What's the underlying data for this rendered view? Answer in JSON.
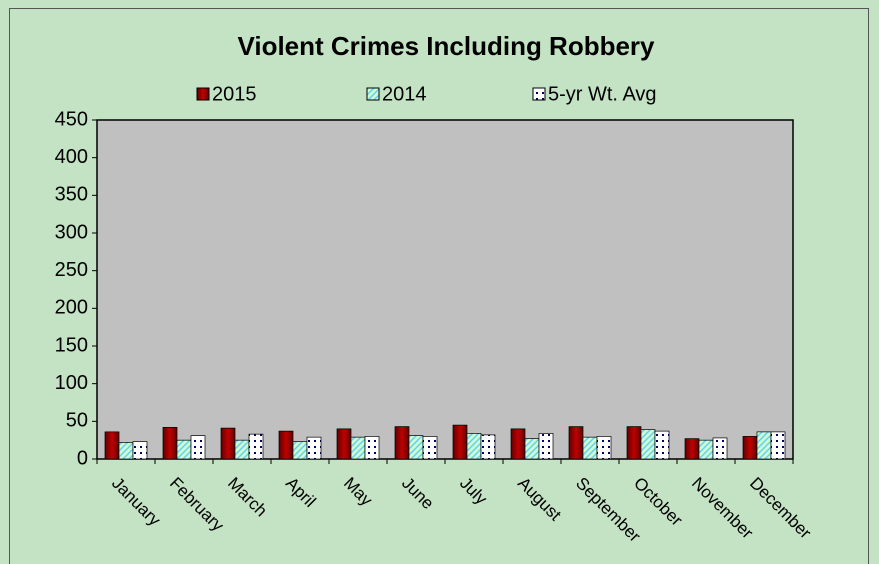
{
  "chart_data": {
    "type": "bar",
    "title": "Violent Crimes Including Robbery",
    "categories": [
      "January",
      "February",
      "March",
      "April",
      "May",
      "June",
      "July",
      "August",
      "September",
      "October",
      "November",
      "December"
    ],
    "series": [
      {
        "name": "2015",
        "color": "#c00000",
        "pattern": "solid",
        "values": [
          36,
          42,
          41,
          37,
          40,
          43,
          45,
          40,
          43,
          43,
          27,
          30
        ]
      },
      {
        "name": "2014",
        "color": "#ccffcc",
        "pattern": "diagonal",
        "values": [
          22,
          25,
          25,
          23,
          29,
          31,
          34,
          27,
          29,
          39,
          25,
          36
        ]
      },
      {
        "name": "5-yr Wt. Avg",
        "color": "#ffffff",
        "pattern": "dots",
        "values": [
          23,
          31,
          33,
          29,
          30,
          30,
          32,
          34,
          30,
          37,
          28,
          36
        ]
      }
    ],
    "ylim": [
      0,
      450
    ],
    "yticks": [
      0,
      50,
      100,
      150,
      200,
      250,
      300,
      350,
      400,
      450
    ],
    "legend": "top",
    "grid": false
  }
}
